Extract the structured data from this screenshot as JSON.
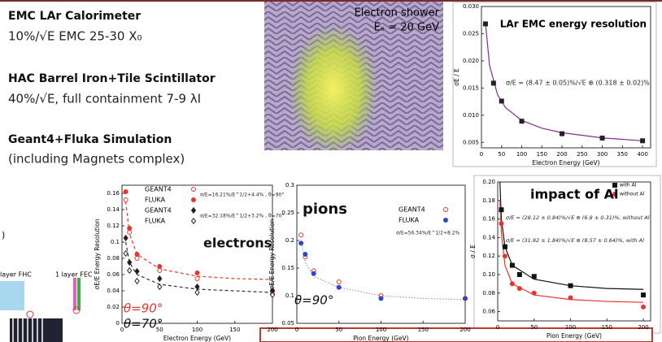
{
  "slide": {
    "lines": [
      "EMC LAr  Calorimeter",
      "10%/√E EMC 25-30 X₀",
      "HAC Barrel Iron+Tile Scintillator",
      "40%/√E, full containment 7-9 λI",
      "Geant4+Fluka Simulation",
      "(including Magnets complex)"
    ]
  },
  "shower": {
    "title": "Electron shower",
    "energy": "Eₑ = 20 GeV"
  },
  "diagram": {
    "label_left": "layer FHC",
    "label_right": "1 layer FEC",
    "paren": ")"
  },
  "chart_data": [
    {
      "type": "scatter",
      "title": "LAr EMC energy resolution",
      "annotations": [
        "σ/E = (8.47 ± 0.05)%/√E ⊕ (0.318 ± 0.02)%"
      ],
      "xlabel": "Electron Energy (GeV)",
      "ylabel": "σE / E",
      "xlim": [
        0,
        420
      ],
      "ylim": [
        0.004,
        0.03
      ],
      "xticks": [
        0,
        50,
        100,
        150,
        200,
        250,
        300,
        350,
        400
      ],
      "yticks": [
        0.005,
        {
          "value": 0.01,
          "label": "0.010"
        },
        {
          "value": 0.015,
          "label": "0.015"
        },
        {
          "value": 0.02,
          "label": "0.020"
        },
        {
          "value": 0.025,
          "label": "0.025"
        },
        {
          "value": 0.03,
          "label": "0.030"
        }
      ],
      "series": [
        {
          "color": "#8a2a9a",
          "style": "line",
          "x": [
            10,
            20,
            40,
            60,
            100,
            150,
            200,
            300,
            400
          ],
          "values": [
            0.02698,
            0.0192,
            0.01376,
            0.01138,
            0.00905,
            0.00761,
            0.00678,
            0.00583,
            0.0053
          ]
        },
        {
          "color": "#222222",
          "marker": "square",
          "x": [
            10,
            30,
            50,
            100,
            200,
            300,
            400
          ],
          "values": [
            0.0268,
            0.0159,
            0.0126,
            0.0089,
            0.0066,
            0.0058,
            0.0053
          ]
        }
      ]
    },
    {
      "type": "scatter",
      "annotations": [
        "σ/E=16.21%/E^1/2+4.4% , θ=90°",
        "σ/E=32.18%/E^1/2+3.2% , θ=70°",
        "electrons",
        "θ=90°",
        "θ=70°"
      ],
      "xlabel": "Electron Energy (GeV)",
      "ylabel": "σE/E Energy Resolution",
      "xlim": [
        0,
        200
      ],
      "ylim": [
        0,
        0.17
      ],
      "xticks": [
        0,
        50,
        100,
        150,
        200
      ],
      "yticks": [
        0,
        0.02,
        0.04,
        0.06,
        0.08,
        0.1,
        0.12,
        0.14,
        0.16
      ],
      "series": [
        {
          "color": "#e8352a",
          "style": "dashed",
          "x": [
            5,
            10,
            20,
            50,
            100,
            150,
            200
          ],
          "values": [
            0.15,
            0.11,
            0.085,
            0.067,
            0.058,
            0.055,
            0.054
          ]
        },
        {
          "color": "#333333",
          "style": "dashed",
          "x": [
            5,
            10,
            20,
            50,
            100,
            150,
            200
          ],
          "values": [
            0.1,
            0.075,
            0.06,
            0.048,
            0.042,
            0.04,
            0.038
          ]
        },
        {
          "name": "GEANT4",
          "color": "#e8352a",
          "marker": "open-circle",
          "x": [
            5,
            10,
            20,
            50,
            100,
            200
          ],
          "values": [
            0.152,
            0.112,
            0.08,
            0.065,
            0.055,
            0.036
          ]
        },
        {
          "name": "FLUKA",
          "color": "#e8352a",
          "marker": "circle",
          "x": [
            5,
            10,
            20,
            50,
            100,
            200
          ],
          "values": [
            0.162,
            0.117,
            0.085,
            0.07,
            0.062,
            0.04
          ]
        },
        {
          "name": "GEANT4",
          "color": "#222222",
          "marker": "diamond",
          "x": [
            5,
            10,
            20,
            50,
            100,
            200
          ],
          "values": [
            0.105,
            0.075,
            0.064,
            0.055,
            0.045,
            0.04
          ]
        },
        {
          "name": "FLUKA",
          "color": "#222222",
          "marker": "open-diamond",
          "x": [
            5,
            10,
            20,
            50,
            100,
            200
          ],
          "values": [
            0.086,
            0.065,
            0.052,
            0.045,
            0.038,
            0.035
          ]
        }
      ]
    },
    {
      "type": "scatter",
      "annotations": [
        "σ/E=56.34%/E^1/2+8.2%",
        "pions",
        "θ=90°"
      ],
      "xlabel": "Pion Energy (GeV)",
      "ylabel": "σE/E Energy Resolution",
      "xlim": [
        0,
        200
      ],
      "ylim": [
        0.05,
        0.3
      ],
      "xticks": [
        0,
        50,
        100,
        150,
        200
      ],
      "yticks": [
        0.05,
        0.1,
        0.15,
        0.2,
        0.25,
        0.3
      ],
      "series": [
        {
          "color": "#999999",
          "style": "dotted",
          "x": [
            5,
            10,
            20,
            50,
            100,
            150,
            200
          ],
          "values": [
            0.2,
            0.16,
            0.135,
            0.115,
            0.1,
            0.095,
            0.093
          ]
        },
        {
          "name": "GEANT4",
          "color": "#e8352a",
          "marker": "open-circle",
          "x": [
            5,
            10,
            20,
            50,
            100,
            200
          ],
          "values": [
            0.21,
            0.17,
            0.145,
            0.125,
            0.1,
            0.095
          ]
        },
        {
          "name": "FLUKA",
          "color": "#3344cc",
          "marker": "circle",
          "x": [
            5,
            10,
            20,
            50,
            100,
            200
          ],
          "values": [
            0.195,
            0.175,
            0.14,
            0.115,
            0.095,
            0.095
          ]
        }
      ]
    },
    {
      "type": "scatter",
      "title": "impact of Al",
      "annotations": [
        "σ/E = (28.12 ± 0.84)%/√E ⊕ (6.8 ± 0.31)%, without Al",
        "σ/E = (31.92 ± 1.84)%/√E ⊕ (8.57 ± 0.64)%, with Al"
      ],
      "xlabel": "Pion Energy (GeV)",
      "ylabel": "σ / E",
      "xlim": [
        0,
        210
      ],
      "ylim": [
        0.05,
        0.2
      ],
      "xticks": [
        0,
        50,
        100,
        150,
        200
      ],
      "yticks": [
        0.06,
        0.08,
        {
          "value": 0.1,
          "label": "0.10"
        },
        0.12,
        0.14,
        0.16,
        0.18,
        {
          "value": 0.2,
          "label": "0.20"
        }
      ],
      "series": [
        {
          "color": "#111111",
          "style": "line",
          "x": [
            3,
            5,
            10,
            20,
            50,
            100,
            150,
            200
          ],
          "values": [
            0.2,
            0.16,
            0.13,
            0.11,
            0.095,
            0.088,
            0.085,
            0.084
          ]
        },
        {
          "color": "#e8352a",
          "style": "line",
          "x": [
            3,
            5,
            10,
            20,
            50,
            100,
            150,
            200
          ],
          "values": [
            0.18,
            0.145,
            0.11,
            0.09,
            0.078,
            0.073,
            0.071,
            0.07
          ]
        },
        {
          "name": "with Al",
          "color": "#111111",
          "marker": "square",
          "x": [
            5,
            10,
            20,
            30,
            50,
            100,
            200
          ],
          "values": [
            0.17,
            0.13,
            0.11,
            0.1,
            0.098,
            0.088,
            0.078
          ]
        },
        {
          "name": "without Al",
          "color": "#e8352a",
          "marker": "circle",
          "x": [
            5,
            10,
            20,
            30,
            50,
            100,
            200
          ],
          "values": [
            0.155,
            0.12,
            0.09,
            0.085,
            0.08,
            0.075,
            0.065
          ]
        }
      ]
    }
  ]
}
